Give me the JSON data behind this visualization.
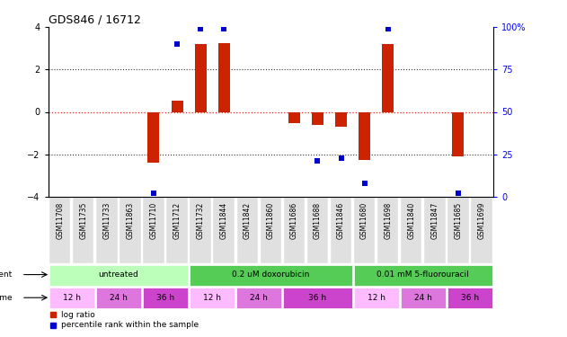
{
  "title": "GDS846 / 16712",
  "samples": [
    "GSM11708",
    "GSM11735",
    "GSM11733",
    "GSM11863",
    "GSM11710",
    "GSM11712",
    "GSM11732",
    "GSM11844",
    "GSM11842",
    "GSM11860",
    "GSM11686",
    "GSM11688",
    "GSM11846",
    "GSM11680",
    "GSM11698",
    "GSM11840",
    "GSM11847",
    "GSM11685",
    "GSM11699"
  ],
  "log_ratios": [
    0.0,
    0.0,
    0.0,
    0.0,
    -2.4,
    0.55,
    3.2,
    3.25,
    0.0,
    0.0,
    -0.55,
    -0.6,
    -0.7,
    -2.25,
    3.2,
    0.0,
    0.0,
    -2.1,
    0.0
  ],
  "percentile_ranks": [
    null,
    null,
    null,
    null,
    -3.85,
    3.2,
    3.9,
    3.9,
    null,
    null,
    null,
    -2.3,
    -2.2,
    -3.35,
    3.9,
    null,
    null,
    -3.85,
    null
  ],
  "bar_color": "#cc2200",
  "dot_color": "#0000cc",
  "ylim": [
    -4,
    4
  ],
  "yticks_left": [
    -4,
    -2,
    0,
    2,
    4
  ],
  "yticks_right": [
    0,
    25,
    50,
    75,
    100
  ],
  "yticks_right_vals": [
    -4,
    -2,
    0,
    2,
    4
  ],
  "dotted_lines": [
    -2,
    2
  ],
  "agent_groups": [
    {
      "label": "untreated",
      "start": 0,
      "end": 6,
      "color": "#bbffbb"
    },
    {
      "label": "0.2 uM doxorubicin",
      "start": 6,
      "end": 13,
      "color": "#55cc55"
    },
    {
      "label": "0.01 mM 5-fluorouracil",
      "start": 13,
      "end": 19,
      "color": "#55cc55"
    }
  ],
  "time_groups": [
    {
      "label": "12 h",
      "start": 0,
      "end": 2,
      "color": "#ffbbff"
    },
    {
      "label": "24 h",
      "start": 2,
      "end": 4,
      "color": "#dd77dd"
    },
    {
      "label": "36 h",
      "start": 4,
      "end": 6,
      "color": "#cc44cc"
    },
    {
      "label": "12 h",
      "start": 6,
      "end": 8,
      "color": "#ffbbff"
    },
    {
      "label": "24 h",
      "start": 8,
      "end": 10,
      "color": "#dd77dd"
    },
    {
      "label": "36 h",
      "start": 10,
      "end": 13,
      "color": "#cc44cc"
    },
    {
      "label": "12 h",
      "start": 13,
      "end": 15,
      "color": "#ffbbff"
    },
    {
      "label": "24 h",
      "start": 15,
      "end": 17,
      "color": "#dd77dd"
    },
    {
      "label": "36 h",
      "start": 17,
      "end": 19,
      "color": "#cc44cc"
    }
  ],
  "legend_bar_color": "#cc2200",
  "legend_dot_color": "#0000cc",
  "bg_color": "#ffffff",
  "sample_label_fontsize": 5.5,
  "title_fontsize": 9
}
